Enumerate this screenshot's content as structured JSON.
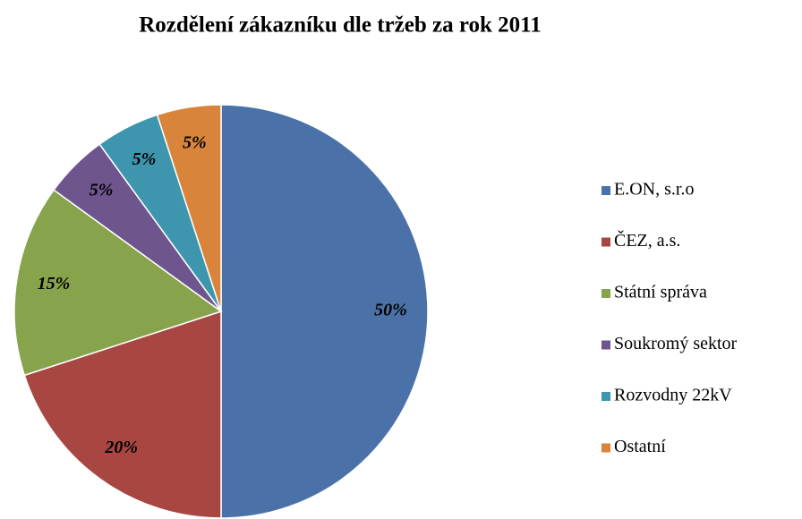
{
  "chart_data": {
    "type": "pie",
    "title": "Rozdělení zákazníku dle tržeb za rok 2011",
    "categories": [
      "E.ON, s.r.o",
      "ČEZ, a.s.",
      "Státní správa",
      "Soukromý sektor",
      "Rozvodny 22kV",
      "Ostatní"
    ],
    "values": [
      50,
      20,
      15,
      5,
      5,
      5
    ],
    "value_labels": [
      "50%",
      "20%",
      "15%",
      "5%",
      "5%",
      "5%"
    ],
    "colors": [
      "#4a72a8",
      "#a84642",
      "#87a34c",
      "#6e558e",
      "#3d96ae",
      "#d9843b"
    ],
    "legend": "right"
  }
}
